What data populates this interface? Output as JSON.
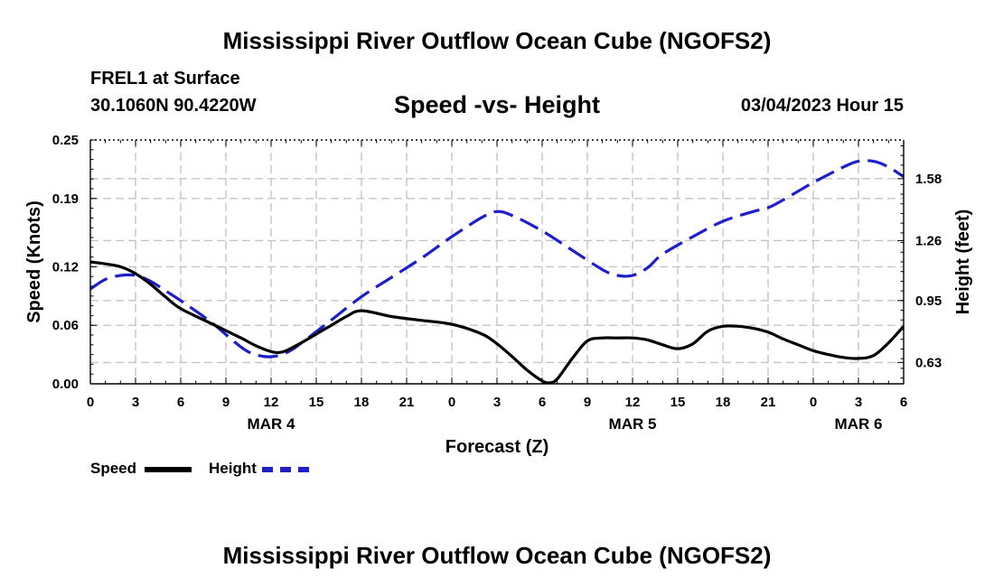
{
  "header": {
    "title": "Mississippi River Outflow Ocean Cube (NGOFS2)",
    "station": "FREL1 at Surface",
    "coords": "30.1060N  90.4220W",
    "chart_title": "Speed -vs- Height",
    "timestamp": "03/04/2023 Hour 15"
  },
  "footer": {
    "title": "Mississippi River Outflow Ocean Cube (NGOFS2)"
  },
  "legend": {
    "speed_label": "Speed",
    "height_label": "Height",
    "speed_color": "#000000",
    "height_color": "#1f1fc8"
  },
  "chart_data": {
    "type": "line",
    "title": "Speed -vs- Height",
    "xlabel": "Forecast (Z)",
    "ylabel_left": "Speed (Knots)",
    "ylabel_right": "Height (feet)",
    "x_unit": "hours from 00Z MAR 4",
    "xlim": [
      0,
      54
    ],
    "x_ticks": [
      0,
      3,
      6,
      9,
      12,
      15,
      18,
      21,
      24,
      27,
      30,
      33,
      36,
      39,
      42,
      45,
      48,
      51,
      54
    ],
    "x_tick_labels": [
      "0",
      "3",
      "6",
      "9",
      "12",
      "15",
      "18",
      "21",
      "0",
      "3",
      "6",
      "9",
      "12",
      "15",
      "18",
      "21",
      "0",
      "3",
      "6"
    ],
    "day_labels": [
      {
        "x": 12,
        "label": "MAR 4"
      },
      {
        "x": 36,
        "label": "MAR 5"
      },
      {
        "x": 51,
        "label": "MAR 6"
      }
    ],
    "left_axis": {
      "ylim": [
        0,
        0.25
      ],
      "ticks": [
        0.0,
        0.06,
        0.12,
        0.19,
        0.25
      ],
      "tick_labels": [
        "0.00",
        "0.06",
        "0.12",
        "0.19",
        "0.25"
      ]
    },
    "right_axis": {
      "ylim": [
        0.52,
        1.78
      ],
      "ticks": [
        0.63,
        0.95,
        1.26,
        1.58
      ],
      "tick_labels": [
        "0.63",
        "0.95",
        "1.26",
        "1.58"
      ]
    },
    "grid": true,
    "series": [
      {
        "name": "Speed",
        "axis": "left",
        "style": "solid",
        "color": "#000000",
        "x": [
          0,
          1,
          2,
          3,
          4,
          5,
          6,
          8,
          10,
          11,
          12,
          12.5,
          13,
          14,
          15,
          16,
          17,
          18,
          20,
          22,
          24,
          26,
          27,
          28,
          29,
          30,
          30.5,
          31,
          32,
          33,
          34,
          35,
          36,
          37,
          38,
          39,
          40,
          41,
          42,
          43,
          44,
          45,
          46,
          47,
          48,
          49,
          50,
          51,
          52,
          53,
          54
        ],
        "y": [
          0.125,
          0.123,
          0.12,
          0.113,
          0.102,
          0.089,
          0.077,
          0.062,
          0.047,
          0.039,
          0.033,
          0.032,
          0.034,
          0.042,
          0.051,
          0.06,
          0.069,
          0.075,
          0.069,
          0.065,
          0.061,
          0.051,
          0.041,
          0.028,
          0.014,
          0.003,
          0.001,
          0.005,
          0.026,
          0.044,
          0.047,
          0.047,
          0.047,
          0.045,
          0.04,
          0.036,
          0.041,
          0.054,
          0.059,
          0.059,
          0.057,
          0.053,
          0.046,
          0.04,
          0.034,
          0.03,
          0.027,
          0.026,
          0.029,
          0.042,
          0.059
        ]
      },
      {
        "name": "Height",
        "axis": "right",
        "style": "dashed",
        "color": "#1f1fc8",
        "x": [
          0,
          1,
          2,
          3,
          4,
          5,
          6,
          8,
          10,
          11,
          12,
          13,
          14,
          16,
          18,
          20,
          22,
          24,
          26,
          27,
          28,
          30,
          32,
          34,
          35,
          36,
          37,
          38,
          40,
          42,
          44,
          45,
          46,
          48,
          50,
          51,
          52,
          53,
          54
        ],
        "y": [
          1.01,
          1.06,
          1.08,
          1.08,
          1.05,
          1.0,
          0.95,
          0.84,
          0.71,
          0.67,
          0.66,
          0.68,
          0.73,
          0.85,
          0.97,
          1.07,
          1.17,
          1.28,
          1.38,
          1.41,
          1.39,
          1.31,
          1.21,
          1.11,
          1.08,
          1.08,
          1.12,
          1.19,
          1.28,
          1.36,
          1.41,
          1.43,
          1.47,
          1.56,
          1.64,
          1.67,
          1.67,
          1.64,
          1.59
        ]
      }
    ]
  }
}
